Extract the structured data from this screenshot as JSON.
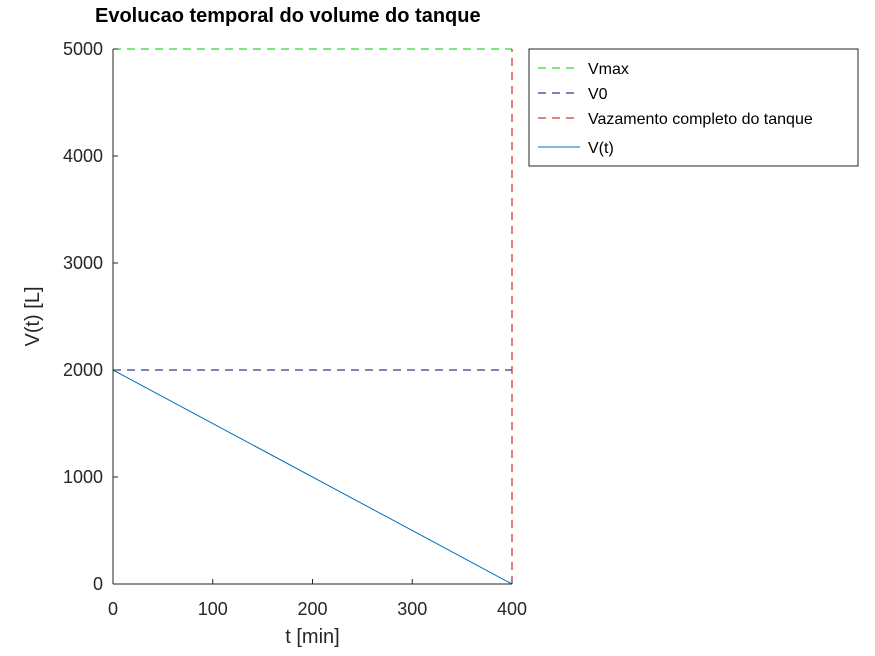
{
  "chart_data": {
    "type": "line",
    "title": "Evolucao temporal do volume do tanque",
    "xlabel": "t [min]",
    "ylabel": "V(t) [L]",
    "xlim": [
      0,
      400
    ],
    "ylim": [
      0,
      5000
    ],
    "xticks": [
      "0",
      "100",
      "200",
      "300",
      "400"
    ],
    "yticks": [
      "0",
      "1000",
      "2000",
      "3000",
      "4000",
      "5000"
    ],
    "grid": false,
    "legend_position": "outside-top-right",
    "series": [
      {
        "name": "Vmax",
        "style": "dashed",
        "color": "#00cc00",
        "x": [
          0,
          400
        ],
        "y": [
          5000,
          5000
        ]
      },
      {
        "name": "V0",
        "style": "dashed",
        "color": "#000080",
        "x": [
          0,
          400
        ],
        "y": [
          2000,
          2000
        ]
      },
      {
        "name": "Vazamento completo do tanque",
        "style": "dashed",
        "color": "#cc0000",
        "x": [
          400,
          400
        ],
        "y": [
          0,
          5000
        ]
      },
      {
        "name": "V(t)",
        "style": "solid",
        "color": "#0072bd",
        "x": [
          0,
          400
        ],
        "y": [
          2000,
          0
        ]
      }
    ]
  }
}
